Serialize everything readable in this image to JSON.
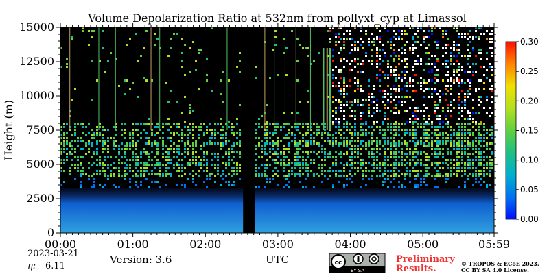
{
  "chart_data": {
    "type": "heatmap",
    "title": "Volume Depolarization Ratio at 532nm from pollyxt_cyp at Limassol",
    "ylabel": "Height (m)",
    "xlabel": "UTC",
    "x_ticks": [
      "00:00",
      "01:00",
      "02:00",
      "03:00",
      "04:00",
      "05:00",
      "05:59"
    ],
    "x_range_hours": [
      0,
      5.983
    ],
    "y_ticks": [
      0,
      2500,
      5000,
      7500,
      10000,
      12500,
      15000
    ],
    "ylim": [
      0,
      15000
    ],
    "colorbar": {
      "ticks": [
        0.0,
        0.05,
        0.1,
        0.15,
        0.2,
        0.25,
        0.3
      ],
      "tick_labels": [
        "0.00",
        "0.05",
        "0.10",
        "0.15",
        "0.20",
        "0.25",
        "0.30"
      ],
      "range": [
        0,
        0.3
      ],
      "colormap": [
        "#0010ff",
        "#0070f0",
        "#00b0d0",
        "#20c080",
        "#60d040",
        "#b0e020",
        "#f0e000",
        "#ff8000",
        "#ff1000"
      ]
    },
    "data_gap_hours": [
      2.52,
      2.68
    ],
    "layers": [
      {
        "height_m": [
          0,
          3500
        ],
        "ratio_approx": 0.03,
        "description_key": "boundary_layer"
      },
      {
        "height_m": [
          4000,
          8000
        ],
        "ratio_approx": 0.12,
        "description_key": "aerosol_layer"
      }
    ]
  },
  "footer": {
    "date": "2023-03-21",
    "eta_label": "η:",
    "eta_value": "6.11",
    "version": "Version: 3.6",
    "preliminary_line1": "Preliminary",
    "preliminary_line2": "Results.",
    "copyright_line1": "© TROPOS & ECoE 2023.",
    "copyright_line2": "CC BY SA 4.0 License.",
    "cc_badge_text": "BY   SA"
  },
  "colors": {
    "background": "#000000",
    "preliminary": "#ee3333"
  }
}
